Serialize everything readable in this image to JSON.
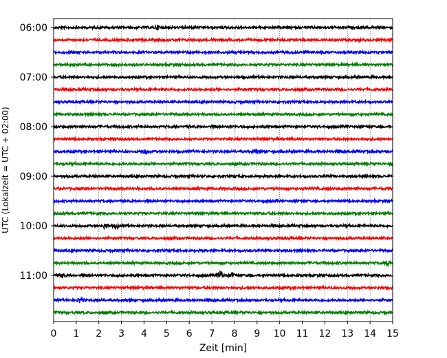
{
  "chart_data": {
    "type": "line",
    "title": "",
    "xlabel": "Zeit  [min]",
    "ylabel": "UTC (Lokalzeit = UTC + 02:00)",
    "xlim": [
      0,
      15
    ],
    "x_ticks": [
      "0",
      "1",
      "2",
      "3",
      "4",
      "5",
      "6",
      "7",
      "8",
      "9",
      "10",
      "11",
      "12",
      "13",
      "14",
      "15"
    ],
    "y_tick_labels": [
      "06:00",
      "07:00",
      "08:00",
      "09:00",
      "10:00",
      "11:00"
    ],
    "grid": "vertical-dotted",
    "trace_interval_min": 15,
    "colors": [
      "#000000",
      "#ff0000",
      "#0000ff",
      "#008000"
    ],
    "series": [
      {
        "time": "06:00",
        "color": "#000000",
        "events": [
          [
            4.6,
            2.5
          ]
        ]
      },
      {
        "time": "06:15",
        "color": "#ff0000",
        "events": []
      },
      {
        "time": "06:30",
        "color": "#0000ff",
        "events": []
      },
      {
        "time": "06:45",
        "color": "#008000",
        "events": []
      },
      {
        "time": "07:00",
        "color": "#000000",
        "events": []
      },
      {
        "time": "07:15",
        "color": "#ff0000",
        "events": []
      },
      {
        "time": "07:30",
        "color": "#0000ff",
        "events": []
      },
      {
        "time": "07:45",
        "color": "#008000",
        "events": []
      },
      {
        "time": "08:00",
        "color": "#000000",
        "events": []
      },
      {
        "time": "08:15",
        "color": "#ff0000",
        "events": []
      },
      {
        "time": "08:30",
        "color": "#0000ff",
        "events": [
          [
            4.05,
            3
          ],
          [
            8.9,
            2
          ]
        ]
      },
      {
        "time": "08:45",
        "color": "#008000",
        "events": []
      },
      {
        "time": "09:00",
        "color": "#000000",
        "events": []
      },
      {
        "time": "09:15",
        "color": "#ff0000",
        "events": []
      },
      {
        "time": "09:30",
        "color": "#0000ff",
        "events": []
      },
      {
        "time": "09:45",
        "color": "#008000",
        "events": []
      },
      {
        "time": "10:00",
        "color": "#000000",
        "events": [
          [
            2.3,
            3.5
          ],
          [
            2.75,
            2.5
          ]
        ]
      },
      {
        "time": "10:15",
        "color": "#ff0000",
        "events": []
      },
      {
        "time": "10:30",
        "color": "#0000ff",
        "events": []
      },
      {
        "time": "10:45",
        "color": "#008000",
        "events": [
          [
            14.8,
            4
          ]
        ]
      },
      {
        "time": "11:00",
        "color": "#000000",
        "events": [
          [
            0.35,
            3.5
          ],
          [
            7.4,
            6
          ],
          [
            7.9,
            3
          ]
        ]
      },
      {
        "time": "11:15",
        "color": "#ff0000",
        "events": []
      },
      {
        "time": "11:30",
        "color": "#0000ff",
        "events": [
          [
            1.2,
            3
          ]
        ]
      },
      {
        "time": "11:45",
        "color": "#008000",
        "events": []
      }
    ]
  }
}
